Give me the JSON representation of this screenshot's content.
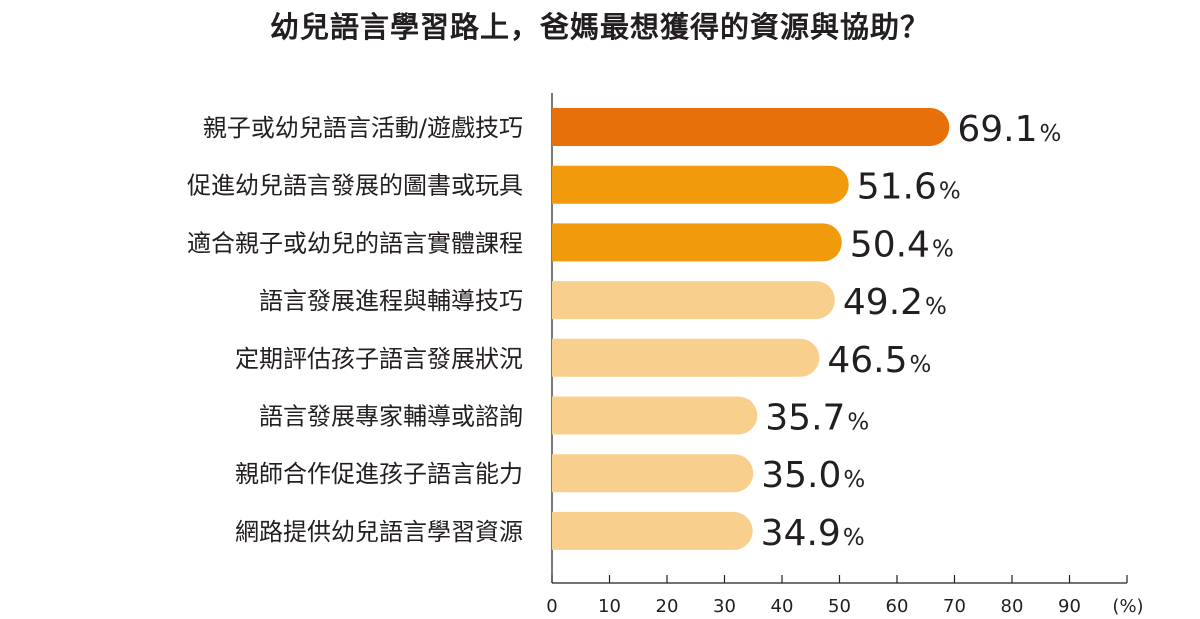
{
  "chart_data": {
    "type": "bar",
    "orientation": "horizontal",
    "title": "幼兒語言學習路上，爸媽最想獲得的資源與協助？",
    "categories": [
      "親子或幼兒語言活動/遊戲技巧",
      "促進幼兒語言發展的圖書或玩具",
      "適合親子或幼兒的語言實體課程",
      "語言發展進程與輔導技巧",
      "定期評估孩子語言發展狀況",
      "語言發展專家輔導或諮詢",
      "親師合作促進孩子語言能力",
      "網路提供幼兒語言學習資源"
    ],
    "values": [
      69.1,
      51.6,
      50.4,
      49.2,
      46.5,
      35.7,
      35.0,
      34.9
    ],
    "value_labels": [
      "69.1",
      "51.6",
      "50.4",
      "49.2",
      "46.5",
      "35.7",
      "35.0",
      "34.9"
    ],
    "value_unit": "%",
    "bar_colors": [
      "#e8700a",
      "#f19a0c",
      "#f19a0c",
      "#f9cf8e",
      "#f9cf8e",
      "#f9cf8e",
      "#f9cf8e",
      "#f9cf8e"
    ],
    "xlim": [
      0,
      100
    ],
    "xticks": [
      0,
      10,
      20,
      30,
      40,
      50,
      60,
      70,
      80,
      90
    ],
    "x_unit_label": "(%)",
    "grid": false,
    "legend": "none"
  }
}
